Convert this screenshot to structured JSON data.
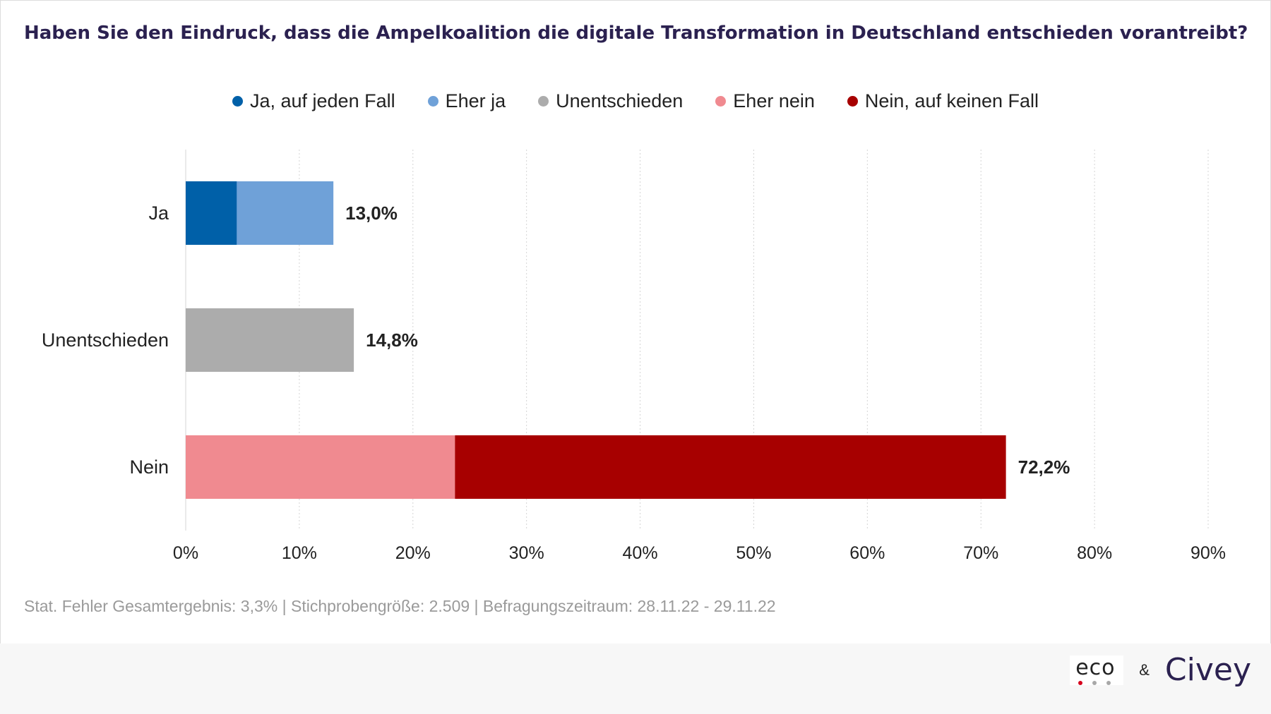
{
  "chart_data": {
    "type": "bar",
    "orientation": "horizontal",
    "stacked": true,
    "title": "Haben Sie den Eindruck, dass die Ampelkoalition die digitale Transformation in Deutschland entschieden vorantreibt?",
    "categories": [
      "Ja",
      "Unentschieden",
      "Nein"
    ],
    "series": [
      {
        "name": "Ja, auf jeden Fall",
        "color": "#0060a8",
        "values": [
          4.5,
          0,
          0
        ]
      },
      {
        "name": "Eher ja",
        "color": "#6fa1d8",
        "values": [
          8.5,
          0,
          0
        ]
      },
      {
        "name": "Unentschieden",
        "color": "#acacac",
        "values": [
          0,
          14.8,
          0
        ]
      },
      {
        "name": "Eher nein",
        "color": "#f08a90",
        "values": [
          0,
          0,
          23.7
        ]
      },
      {
        "name": "Nein, auf keinen Fall",
        "color": "#a70000",
        "values": [
          0,
          0,
          48.5
        ]
      }
    ],
    "totals": [
      "13,0%",
      "14,8%",
      "72,2%"
    ],
    "xlim": [
      0,
      90
    ],
    "xticks": [
      "0%",
      "10%",
      "20%",
      "30%",
      "40%",
      "50%",
      "60%",
      "70%",
      "80%",
      "90%"
    ],
    "grid": "vertical dotted",
    "legend": "top-center"
  },
  "footnote": "Stat. Fehler Gesamtergebnis: 3,3% | Stichprobengröße: 2.509 | Befragungszeitraum: 28.11.22 - 29.11.22",
  "logos": {
    "eco": "eco",
    "ampersand": "&",
    "civey": "Civey",
    "eco_dot_colors": [
      "#d6001c",
      "#a8a8a8",
      "#a8a8a8"
    ]
  }
}
